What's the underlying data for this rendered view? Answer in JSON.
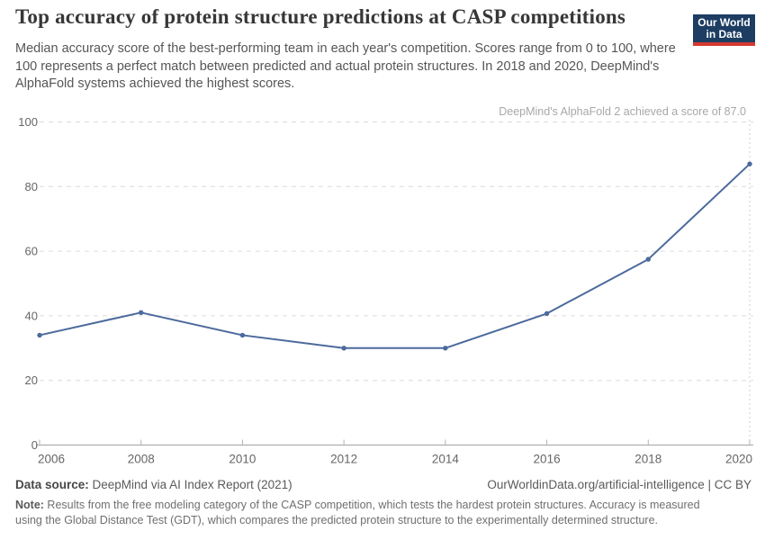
{
  "header": {
    "title": "Top accuracy of protein structure predictions at CASP competitions",
    "subtitle": "Median accuracy score of the best-performing team in each year's competition. Scores range from 0 to 100, where 100 represents a perfect match between predicted and actual protein structures. In 2018 and 2020, DeepMind's AlphaFold systems achieved the highest scores.",
    "logo": {
      "line1": "Our World",
      "line2": "in Data",
      "bg_color": "#1d3d63",
      "bar_color": "#d4392f"
    }
  },
  "chart_data": {
    "type": "line",
    "title": "Top accuracy of protein structure predictions at CASP competitions",
    "x": [
      2006,
      2008,
      2010,
      2012,
      2014,
      2016,
      2018,
      2020
    ],
    "series": [
      {
        "name": "Median accuracy score of best-performing team",
        "values": [
          34.0,
          41.0,
          34.0,
          30.0,
          30.0,
          40.7,
          57.5,
          87.0
        ]
      }
    ],
    "xlabel": "",
    "ylabel": "",
    "ylim": [
      0,
      100
    ],
    "yticks": [
      0,
      20,
      40,
      60,
      80,
      100
    ],
    "xticks": [
      2006,
      2008,
      2010,
      2012,
      2014,
      2016,
      2018,
      2020
    ],
    "grid": "horizontal-dashed",
    "legend": "none",
    "line_color": "#4c6a9c",
    "marker": "dot",
    "annotation": {
      "text": "DeepMind's AlphaFold 2 achieved a score of 87.0",
      "x": 2020,
      "y": 87.0,
      "line_style": "dotted-vertical"
    },
    "colors": {
      "gridline": "#dcdcdc",
      "axis_line": "#a3a3a3",
      "tick_mark": "#b3b3b3",
      "axis_label": "#666666",
      "annotation_text": "#a8a8a8",
      "annotation_line": "#cfcfcf"
    }
  },
  "footer": {
    "datasource_label": "Data source:",
    "datasource_text": " DeepMind via AI Index Report (2021)",
    "link_text": "OurWorldinData.org/artificial-intelligence | CC BY",
    "note_label": "Note:",
    "note_text": " Results from the free modeling category of the CASP competition, which tests the hardest protein structures. Accuracy is measured using the Global Distance Test (GDT), which compares the predicted protein structure to the experimentally determined structure."
  }
}
